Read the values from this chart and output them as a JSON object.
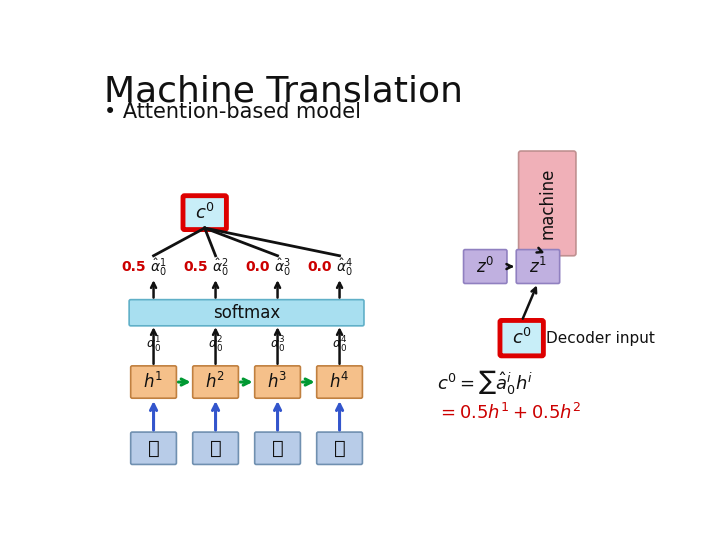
{
  "title": "Machine Translation",
  "bullet": "• Attention-based model",
  "bg_color": "#ffffff",
  "chinese_chars": [
    "機",
    "器",
    "學",
    "習"
  ],
  "alpha_hat_nums": [
    "0.5",
    "0.5",
    "0.0",
    "0.0"
  ],
  "softmax_label": "softmax",
  "machine_label": "machine",
  "decoder_input_label": "Decoder input",
  "chinese_box_color": "#b8cce8",
  "h_box_color": "#f5c08a",
  "softmax_box_color": "#a8dff0",
  "c0_box_color": "#c8eef8",
  "c0_border_color": "#dd0000",
  "machine_box_color": "#f0b0b8",
  "z_box_color": "#c0b0e0",
  "blue_arrow_color": "#3355cc",
  "green_arrow_color": "#009933",
  "black_color": "#111111",
  "red_color": "#cc0000",
  "title_fontsize": 26,
  "bullet_fontsize": 15
}
